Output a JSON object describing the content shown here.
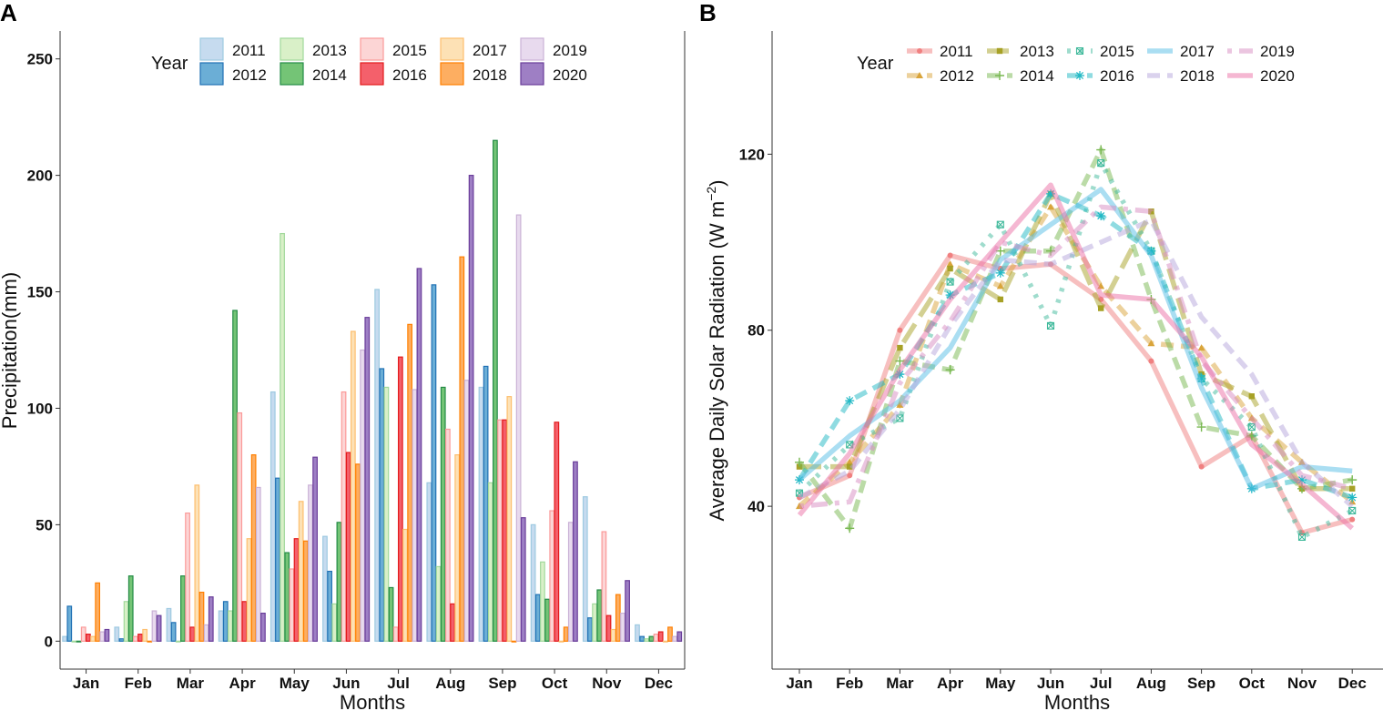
{
  "chart_data": [
    {
      "panel": "A",
      "type": "bar",
      "title": "",
      "xlabel": "Months",
      "ylabel": "Precipitation(mm)",
      "ylim": [
        -12,
        262
      ],
      "yticks": [
        0,
        50,
        100,
        150,
        200,
        250
      ],
      "legend_title": "Year",
      "legend_position": "top",
      "grid": false,
      "categories": [
        "Jan",
        "Feb",
        "Mar",
        "Apr",
        "May",
        "Jun",
        "Jul",
        "Aug",
        "Sep",
        "Oct",
        "Nov",
        "Dec"
      ],
      "series": [
        {
          "name": "2011",
          "fill": "#c6dbef",
          "stroke": "#9ecae1",
          "values": [
            2,
            6,
            14,
            13,
            107,
            45,
            151,
            68,
            109,
            50,
            62,
            7
          ]
        },
        {
          "name": "2012",
          "fill": "#6baed6",
          "stroke": "#2171b5",
          "values": [
            15,
            1,
            8,
            17,
            70,
            30,
            117,
            153,
            118,
            20,
            10,
            2
          ]
        },
        {
          "name": "2013",
          "fill": "#d9f0c8",
          "stroke": "#a1d99b",
          "values": [
            0,
            17,
            0,
            13,
            175,
            16,
            109,
            32,
            68,
            34,
            16,
            1
          ]
        },
        {
          "name": "2014",
          "fill": "#74c476",
          "stroke": "#238b45",
          "values": [
            0,
            28,
            28,
            142,
            38,
            51,
            23,
            109,
            215,
            18,
            22,
            2
          ]
        },
        {
          "name": "2015",
          "fill": "#fcd5d5",
          "stroke": "#fb9a99",
          "values": [
            6,
            2,
            55,
            98,
            31,
            107,
            6,
            91,
            95,
            56,
            47,
            3
          ]
        },
        {
          "name": "2016",
          "fill": "#f4606b",
          "stroke": "#e31a1c",
          "values": [
            3,
            3,
            6,
            17,
            44,
            81,
            122,
            16,
            95,
            94,
            11,
            4
          ]
        },
        {
          "name": "2017",
          "fill": "#fde1b5",
          "stroke": "#fdbf6f",
          "values": [
            2,
            5,
            67,
            44,
            60,
            133,
            48,
            80,
            105,
            0,
            5,
            0
          ]
        },
        {
          "name": "2018",
          "fill": "#fdae61",
          "stroke": "#ff7f00",
          "values": [
            25,
            0,
            21,
            80,
            43,
            76,
            136,
            165,
            0,
            6,
            20,
            6
          ]
        },
        {
          "name": "2019",
          "fill": "#e8daee",
          "stroke": "#cab2d6",
          "values": [
            4,
            13,
            7,
            66,
            67,
            125,
            108,
            112,
            183,
            51,
            12,
            2
          ]
        },
        {
          "name": "2020",
          "fill": "#9e7fc4",
          "stroke": "#6a3d9a",
          "values": [
            5,
            11,
            19,
            12,
            79,
            139,
            160,
            200,
            53,
            77,
            26,
            4
          ]
        }
      ]
    },
    {
      "panel": "B",
      "type": "line",
      "title": "",
      "xlabel": "Months",
      "ylabel": "Average Daily Solar Radiation (W m",
      "ylabel_superscript": "−2",
      "ylabel_close": ")",
      "ylim": [
        3,
        148
      ],
      "yticks": [
        40,
        80,
        120
      ],
      "legend_title": "Year",
      "legend_position": "top",
      "grid": false,
      "categories": [
        "Jan",
        "Feb",
        "Mar",
        "Apr",
        "May",
        "Jun",
        "Jul",
        "Aug",
        "Sep",
        "Oct",
        "Nov",
        "Dec"
      ],
      "series": [
        {
          "name": "2011",
          "color": "#f08080",
          "shape": "circle",
          "dash": "solid",
          "values": [
            42,
            47,
            80,
            97,
            94,
            95,
            87,
            73,
            49,
            56,
            34,
            37
          ]
        },
        {
          "name": "2012",
          "color": "#d9a43a",
          "shape": "triangle",
          "dash": "dashed",
          "values": [
            40,
            50,
            63,
            95,
            90,
            108,
            90,
            77,
            76,
            60,
            50,
            41
          ]
        },
        {
          "name": "2013",
          "color": "#a7a126",
          "shape": "square",
          "dash": "longdash",
          "values": [
            49,
            49,
            76,
            94,
            87,
            111,
            85,
            107,
            70,
            65,
            44,
            44
          ]
        },
        {
          "name": "2014",
          "color": "#78b850",
          "shape": "plus",
          "dash": "dashed",
          "values": [
            50,
            35,
            73,
            71,
            98,
            98,
            121,
            87,
            58,
            56,
            44,
            46
          ]
        },
        {
          "name": "2015",
          "color": "#3fb99b",
          "shape": "boxcross",
          "dash": "dotted",
          "values": [
            43,
            54,
            60,
            91,
            104,
            81,
            118,
            98,
            69,
            58,
            33,
            39
          ]
        },
        {
          "name": "2016",
          "color": "#1fb8c4",
          "shape": "star",
          "dash": "dashed",
          "values": [
            46,
            64,
            70,
            88,
            93,
            111,
            106,
            98,
            69,
            44,
            46,
            42
          ]
        },
        {
          "name": "2017",
          "color": "#56bde6",
          "shape": "none",
          "dash": "solid",
          "values": [
            46,
            56,
            64,
            76,
            96,
            104,
            112,
            97,
            67,
            44,
            49,
            48
          ]
        },
        {
          "name": "2018",
          "color": "#b6a6db",
          "shape": "none",
          "dash": "dashed",
          "values": [
            42,
            48,
            62,
            81,
            96,
            95,
            100,
            105,
            83,
            70,
            50,
            40
          ]
        },
        {
          "name": "2019",
          "color": "#d78cc2",
          "shape": "none",
          "dash": "dotdash",
          "values": [
            40,
            41,
            68,
            82,
            100,
            97,
            108,
            107,
            73,
            60,
            47,
            44
          ]
        },
        {
          "name": "2020",
          "color": "#ec6fa6",
          "shape": "none",
          "dash": "solid",
          "values": [
            38,
            52,
            71,
            87,
            100,
            113,
            88,
            87,
            74,
            54,
            45,
            35
          ]
        }
      ]
    }
  ]
}
